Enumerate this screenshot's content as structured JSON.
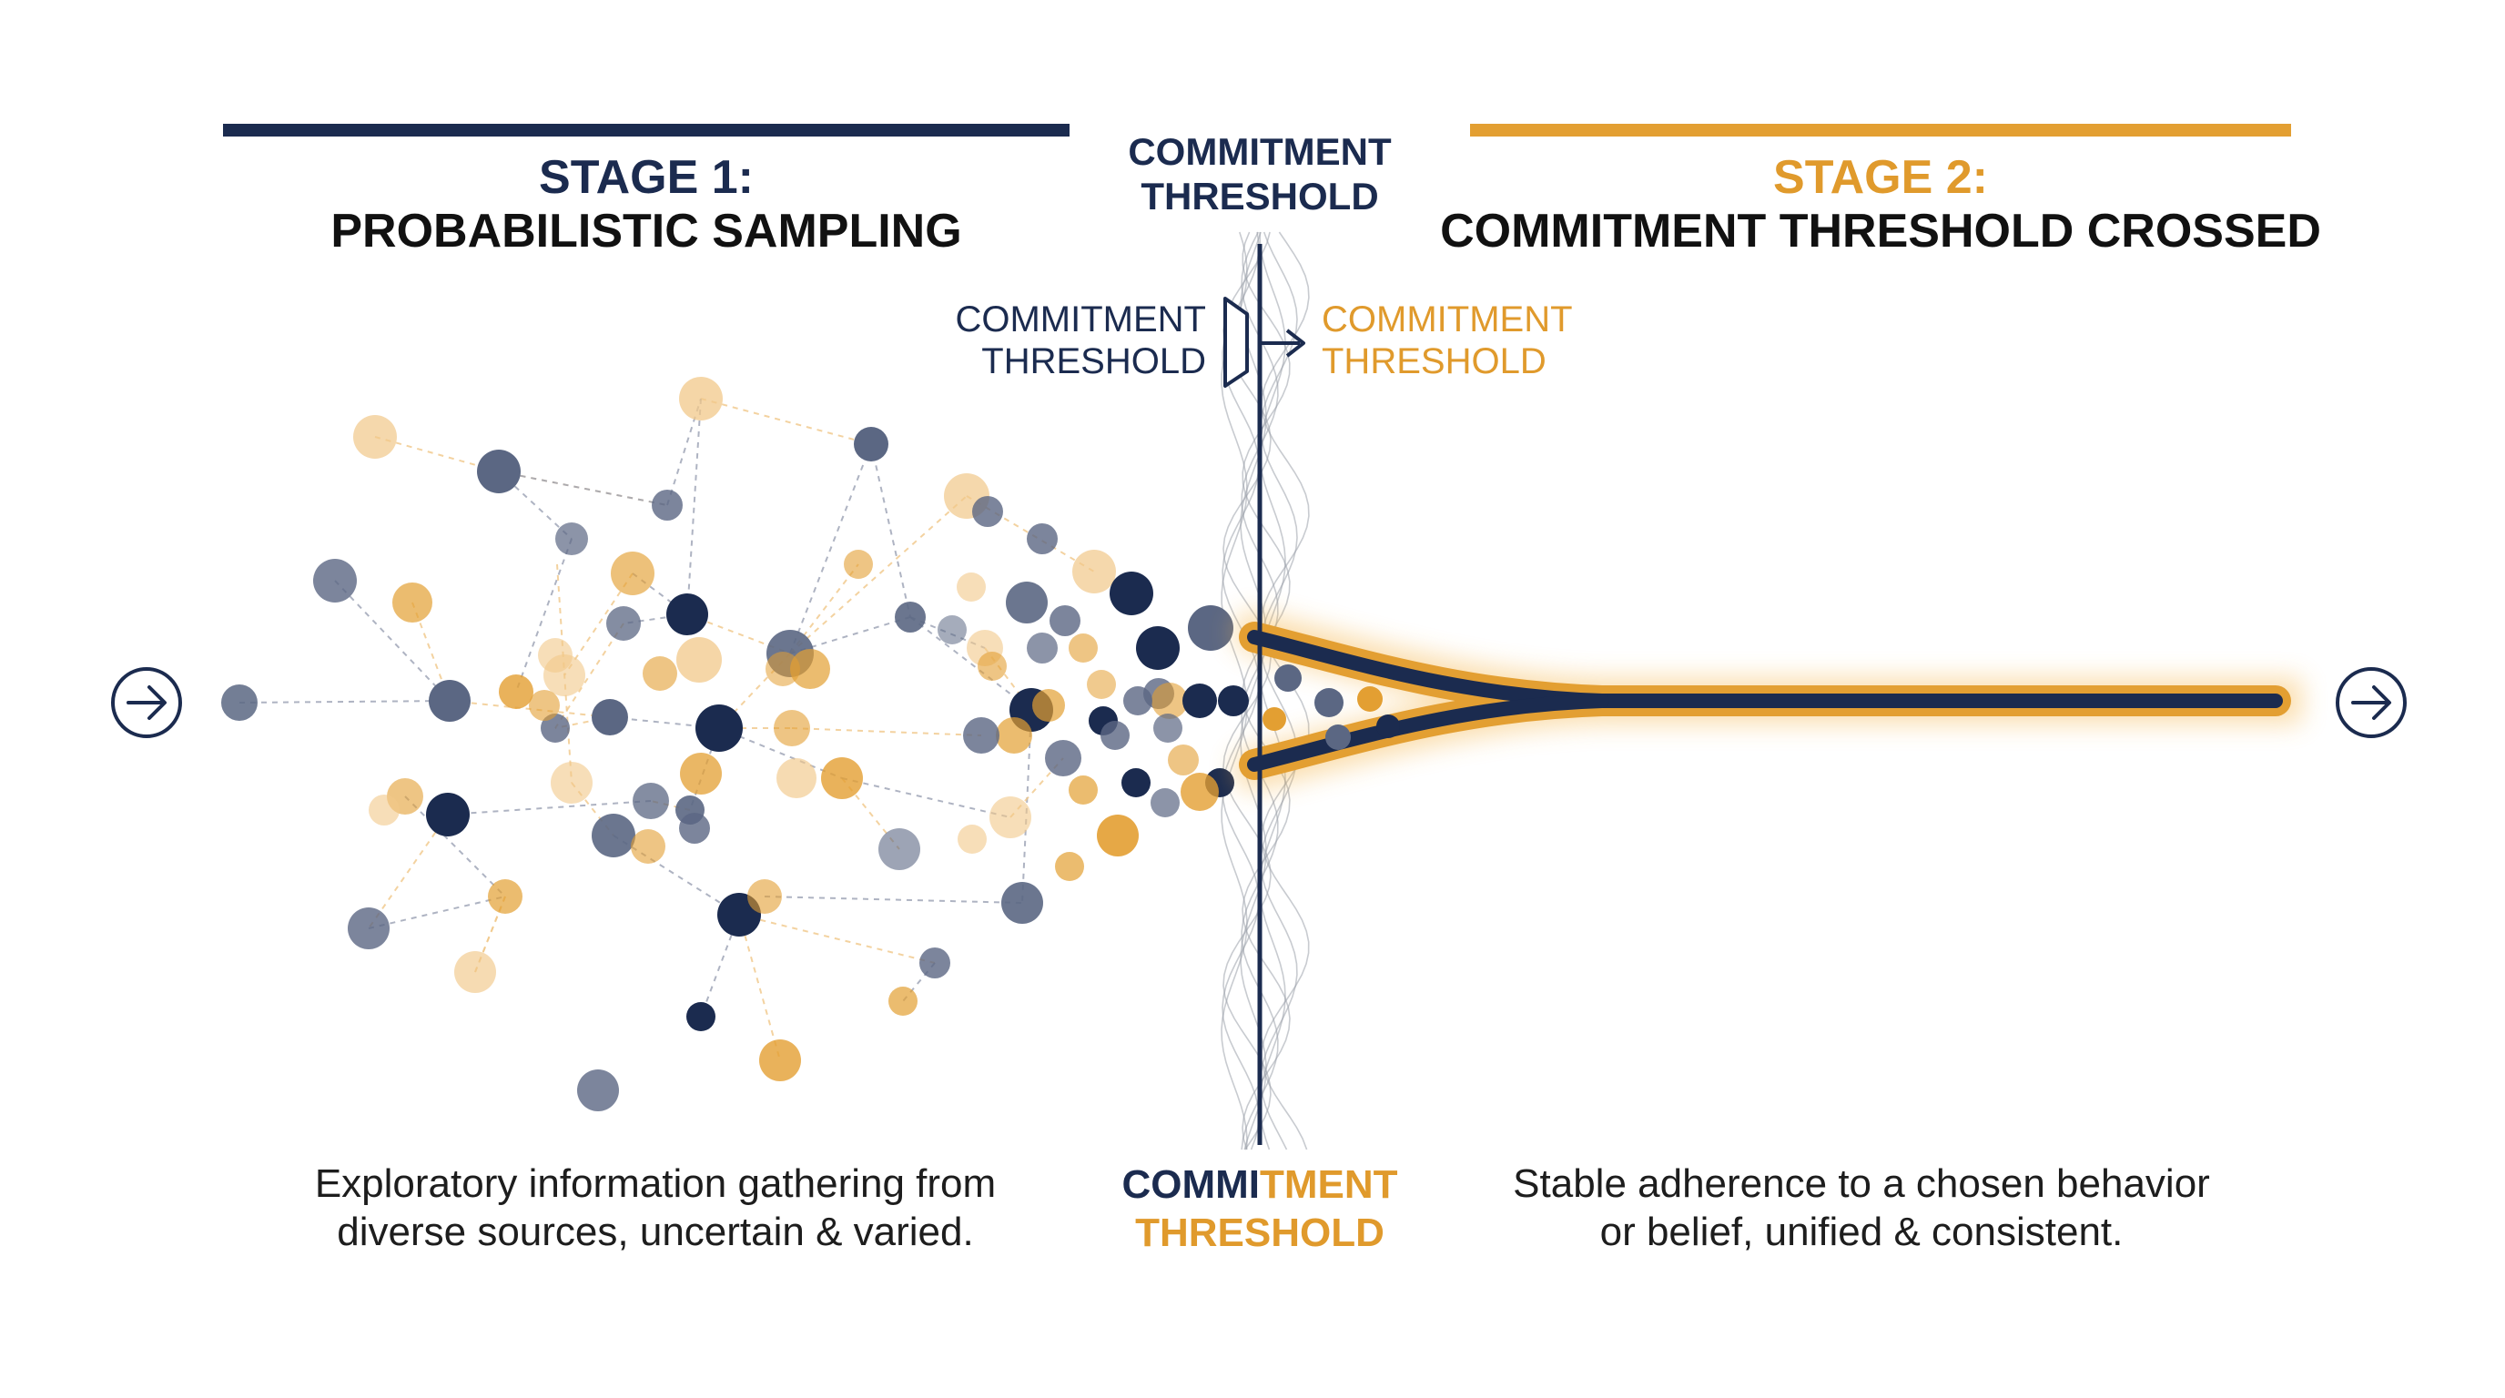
{
  "colors": {
    "navy": "#1b2b4f",
    "slate": "#5b6783",
    "gold": "#e39f32",
    "light_gold": "#f1c889",
    "grey_wave": "#9aa0aa",
    "glow": "#f5b54a",
    "text": "#1d1d1d"
  },
  "stage1": {
    "heading_line1": "STAGE 1:",
    "heading_line2": "PROBABILISTIC SAMPLING",
    "description_line1": "Exploratory information gathering from",
    "description_line2": "diverse sources, uncertain & varied."
  },
  "stage2": {
    "heading_line1": "STAGE 2:",
    "heading_line2": "COMMITMENT THRESHOLD CROSSED",
    "description_line1": "Stable adherence to a chosen behavior",
    "description_line2": "or belief, unified & consistent."
  },
  "threshold": {
    "top_line1": "COMMITMENT",
    "top_line2": "THRESHOLD",
    "left_line1": "COMMITMENT",
    "left_line2": "THRESHOLD",
    "right_line1": "COMMITMENT",
    "right_line2": "THRESHOLD",
    "bottom_line1_navy": "COMMI",
    "bottom_line1_gold": "TMENT",
    "bottom_line2": "THRESHOLD"
  },
  "icons": {
    "start": "arrow-right-circle-icon",
    "end": "arrow-right-circle-icon",
    "gate": "threshold-gate-icon"
  }
}
